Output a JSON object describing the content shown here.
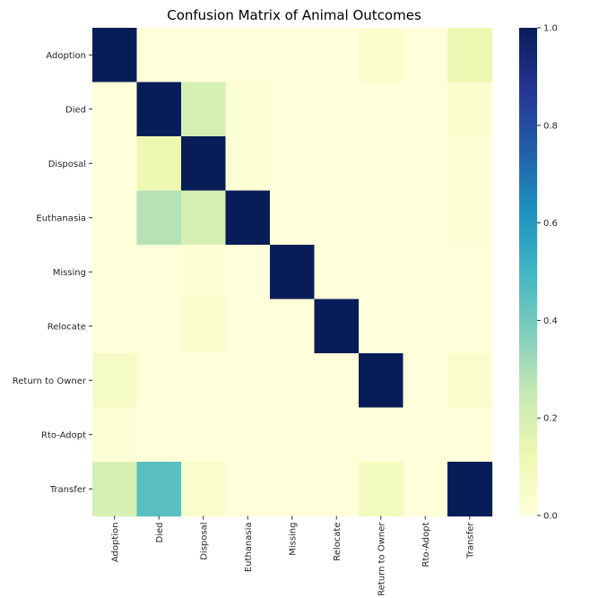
{
  "chart_data": {
    "type": "heatmap",
    "title": "Confusion Matrix of Animal Outcomes",
    "xlabel": "",
    "ylabel": "",
    "row_labels": [
      "Adoption",
      "Died",
      "Disposal",
      "Euthanasia",
      "Missing",
      "Relocate",
      "Return to Owner",
      "Rto-Adopt",
      "Transfer"
    ],
    "col_labels": [
      "Adoption",
      "Died",
      "Disposal",
      "Euthanasia",
      "Missing",
      "Relocate",
      "Return to Owner",
      "Rto-Adopt",
      "Transfer"
    ],
    "values": [
      [
        1.0,
        0.0,
        0.0,
        0.0,
        0.0,
        0.0,
        0.03,
        0.0,
        0.12
      ],
      [
        0.0,
        1.0,
        0.2,
        0.02,
        0.0,
        0.0,
        0.0,
        0.0,
        0.04
      ],
      [
        0.0,
        0.12,
        1.0,
        0.02,
        0.0,
        0.0,
        0.0,
        0.0,
        0.01
      ],
      [
        0.0,
        0.28,
        0.2,
        1.0,
        0.0,
        0.0,
        0.0,
        0.0,
        0.01
      ],
      [
        0.0,
        0.0,
        0.02,
        0.0,
        1.0,
        0.0,
        0.0,
        0.0,
        0.0
      ],
      [
        0.0,
        0.0,
        0.03,
        0.0,
        0.0,
        1.0,
        0.0,
        0.0,
        0.0
      ],
      [
        0.06,
        0.0,
        0.0,
        0.0,
        0.0,
        0.0,
        1.0,
        0.0,
        0.04
      ],
      [
        0.01,
        0.0,
        0.0,
        0.0,
        0.0,
        0.0,
        0.0,
        0.0,
        0.0
      ],
      [
        0.2,
        0.45,
        0.04,
        0.0,
        0.0,
        0.0,
        0.08,
        0.0,
        1.0
      ]
    ],
    "colormap": "YlGnBu",
    "vmin": 0.0,
    "vmax": 1.0,
    "colorbar_ticks": [
      "0.0",
      "0.2",
      "0.4",
      "0.6",
      "0.8",
      "1.0"
    ],
    "colorbar_values": [
      0.0,
      0.2,
      0.4,
      0.6,
      0.8,
      1.0
    ],
    "colormap_stops": [
      "#ffffd9",
      "#edf8b1",
      "#c7e9b4",
      "#7fcdbb",
      "#41b6c4",
      "#1d91c0",
      "#225ea8",
      "#253494",
      "#081d58"
    ]
  }
}
